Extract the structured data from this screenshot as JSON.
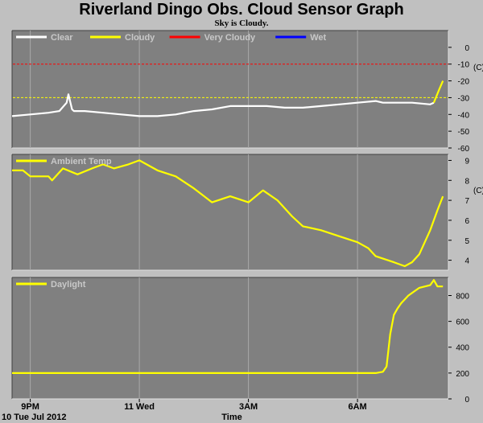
{
  "header": {
    "title": "Riverland Dingo Obs. Cloud Sensor Graph",
    "subtitle": "Sky is Cloudy."
  },
  "colors": {
    "clear": "#ffffff",
    "cloudy": "#ffff00",
    "very_cloudy": "#ff0000",
    "wet": "#0000ff",
    "plot_bg": "#808080",
    "page_bg": "#c0c0c0"
  },
  "x_axis": {
    "ticks": [
      {
        "t": 0.5,
        "label": "9PM"
      },
      {
        "t": 3.5,
        "label": "11 Wed"
      },
      {
        "t": 6.5,
        "label": "3AM"
      },
      {
        "t": 9.5,
        "label": "6AM"
      }
    ],
    "date_label": "10 Tue Jul 2012",
    "axis_label": "Time"
  },
  "chart_data": [
    {
      "type": "line",
      "name": "sky",
      "legend": [
        "Clear",
        "Cloudy",
        "Very Cloudy",
        "Wet"
      ],
      "ylabel": "(C)",
      "ylim": [
        -60,
        10
      ],
      "yticks": [
        0,
        -10,
        -20,
        -30,
        -40,
        -50,
        -60
      ],
      "thresholds": [
        {
          "y": -10,
          "color": "#ff0000"
        },
        {
          "y": -30,
          "color": "#ffff00"
        }
      ],
      "series": [
        {
          "name": "Clear",
          "color": "#ffffff",
          "x": [
            0,
            0.5,
            1,
            1.3,
            1.5,
            1.55,
            1.65,
            1.7,
            2,
            2.5,
            3,
            3.5,
            4,
            4.5,
            5,
            5.5,
            6,
            6.5,
            7,
            7.5,
            8,
            8.5,
            9,
            9.5,
            10,
            10.2,
            10.5,
            11,
            11.5,
            11.6
          ],
          "y": [
            -41,
            -40,
            -39,
            -38,
            -33,
            -28,
            -37,
            -38,
            -38,
            -39,
            -40,
            -41,
            -41,
            -40,
            -38,
            -37,
            -35,
            -35,
            -35,
            -36,
            -36,
            -35,
            -34,
            -33,
            -32,
            -33,
            -33,
            -33,
            -34,
            -33
          ]
        },
        {
          "name": "Cloudy",
          "color": "#ffff00",
          "x": [
            11.6,
            11.75,
            11.85
          ],
          "y": [
            -33,
            -25,
            -20
          ]
        }
      ]
    },
    {
      "type": "line",
      "name": "ambient",
      "legend": [
        "Ambient Temp"
      ],
      "ylabel": "(C)",
      "ylim": [
        3.5,
        9.3
      ],
      "yticks": [
        9,
        8,
        7,
        6,
        5,
        4
      ],
      "series": [
        {
          "name": "Ambient Temp",
          "color": "#ffff00",
          "x": [
            0,
            0.3,
            0.5,
            1,
            1.1,
            1.4,
            1.8,
            2.2,
            2.5,
            2.8,
            3.2,
            3.5,
            4,
            4.5,
            5,
            5.5,
            6,
            6.5,
            6.9,
            7.3,
            7.7,
            8,
            8.5,
            9,
            9.5,
            9.8,
            10,
            10.5,
            10.8,
            11,
            11.2,
            11.5,
            11.7,
            11.85
          ],
          "y": [
            8.5,
            8.5,
            8.2,
            8.2,
            8.0,
            8.6,
            8.3,
            8.6,
            8.8,
            8.6,
            8.8,
            9.0,
            8.5,
            8.2,
            7.6,
            6.9,
            7.2,
            6.9,
            7.5,
            7.0,
            6.2,
            5.7,
            5.5,
            5.2,
            4.9,
            4.6,
            4.2,
            3.9,
            3.7,
            3.9,
            4.3,
            5.5,
            6.5,
            7.2
          ]
        }
      ]
    },
    {
      "type": "line",
      "name": "daylight",
      "legend": [
        "Daylight"
      ],
      "ylim": [
        0,
        940
      ],
      "yticks": [
        800,
        600,
        400,
        200,
        0
      ],
      "series": [
        {
          "name": "Daylight",
          "color": "#ffff00",
          "x": [
            0,
            1,
            2,
            3,
            4,
            5,
            6,
            7,
            8,
            9,
            10,
            10.2,
            10.3,
            10.4,
            10.5,
            10.6,
            10.7,
            10.9,
            11.2,
            11.5,
            11.6,
            11.7,
            11.85
          ],
          "y": [
            200,
            200,
            200,
            200,
            200,
            200,
            200,
            200,
            200,
            200,
            200,
            210,
            250,
            500,
            650,
            700,
            740,
            800,
            860,
            880,
            920,
            870,
            870
          ]
        }
      ]
    }
  ]
}
